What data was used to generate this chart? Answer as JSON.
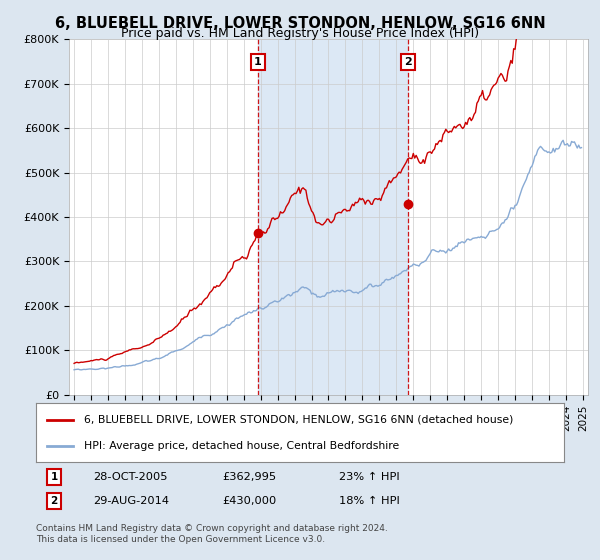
{
  "title": "6, BLUEBELL DRIVE, LOWER STONDON, HENLOW, SG16 6NN",
  "subtitle": "Price paid vs. HM Land Registry's House Price Index (HPI)",
  "title_fontsize": 10.5,
  "subtitle_fontsize": 9,
  "ylabel_ticks": [
    "£0",
    "£100K",
    "£200K",
    "£300K",
    "£400K",
    "£500K",
    "£600K",
    "£700K",
    "£800K"
  ],
  "ytick_values": [
    0,
    100000,
    200000,
    300000,
    400000,
    500000,
    600000,
    700000,
    800000
  ],
  "ylim": [
    0,
    800000
  ],
  "xlim_start": 1994.7,
  "xlim_end": 2025.3,
  "red_color": "#cc0000",
  "blue_color": "#88aad4",
  "shade_color": "#dce8f5",
  "marker1_x": 2005.82,
  "marker1_y": 362995,
  "marker2_x": 2014.66,
  "marker2_y": 430000,
  "legend_red_label": "6, BLUEBELL DRIVE, LOWER STONDON, HENLOW, SG16 6NN (detached house)",
  "legend_blue_label": "HPI: Average price, detached house, Central Bedfordshire",
  "annotation1_date": "28-OCT-2005",
  "annotation1_price": "£362,995",
  "annotation1_hpi": "23% ↑ HPI",
  "annotation2_date": "29-AUG-2014",
  "annotation2_price": "£430,000",
  "annotation2_hpi": "18% ↑ HPI",
  "footer1": "Contains HM Land Registry data © Crown copyright and database right 2024.",
  "footer2": "This data is licensed under the Open Government Licence v3.0.",
  "background_color": "#dce6f0",
  "plot_bg_color": "#ffffff",
  "grid_color": "#cccccc"
}
